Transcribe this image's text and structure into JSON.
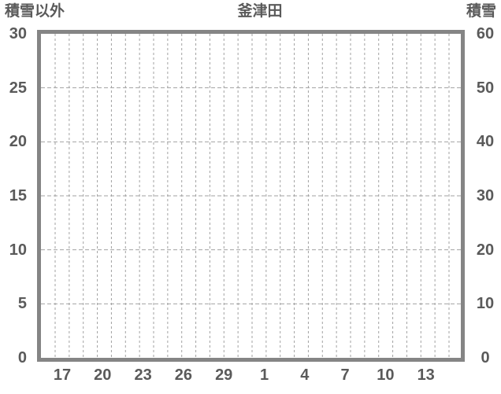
{
  "chart_data": {
    "type": "line",
    "title": "釜津田",
    "series": [],
    "left_axis": {
      "label": "積雪以外",
      "min": 0,
      "max": 30,
      "tick_interval": 5,
      "ticks": [
        "30",
        "25",
        "20",
        "15",
        "10",
        "5",
        "0"
      ]
    },
    "right_axis": {
      "label": "積雪",
      "min": 0,
      "max": 60,
      "tick_interval": 10,
      "ticks": [
        "60",
        "50",
        "40",
        "30",
        "20",
        "10",
        "0"
      ]
    },
    "x_axis": {
      "tick_labels": [
        "17",
        "20",
        "23",
        "26",
        "29",
        "1",
        "4",
        "7",
        "10",
        "13"
      ]
    },
    "grid": {
      "style": "dashed",
      "vertical_count": 29,
      "horizontal_count": 5
    },
    "colors": {
      "frame": "#858585",
      "text": "#5a5a5a",
      "grid": "#a2a2a2",
      "background": "#ffffff"
    }
  }
}
